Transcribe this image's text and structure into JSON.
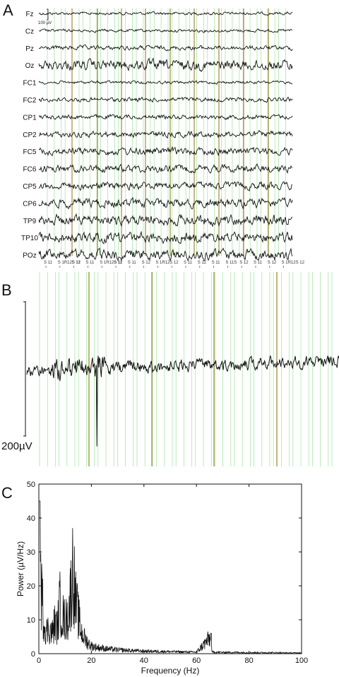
{
  "panels": {
    "a": {
      "letter": "A",
      "scale_label": "100 µV",
      "channels": [
        "Fz",
        "Cz",
        "Pz",
        "Oz",
        "FC1",
        "FC2",
        "CP1",
        "CP2",
        "FC5",
        "FC6",
        "CP5",
        "CP6",
        "TP9",
        "TP10",
        "POz"
      ],
      "event_labels": [
        "S 11",
        "S 1R12S 11",
        "S 12",
        "S 11",
        "S 1R12S 11",
        "S 12",
        "S 11",
        "S 12",
        "S 1R12",
        "S 12",
        "S 11",
        "S 12",
        "S 11",
        "S 11S",
        "S 12",
        "S 11",
        "S 12",
        "S 1R12S 12"
      ]
    },
    "b": {
      "letter": "B",
      "scale_label": "200µV"
    },
    "c": {
      "letter": "C"
    }
  },
  "chart_data": [
    {
      "type": "line",
      "title": "",
      "description_note": "",
      "channels": [
        "Fz",
        "Cz",
        "Pz",
        "Oz",
        "FC1",
        "FC2",
        "CP1",
        "CP2",
        "FC5",
        "FC6",
        "CP5",
        "CP6",
        "TP9",
        "TP10",
        "POz"
      ],
      "scale": "100 µV"
    },
    {
      "type": "line",
      "scale": "200µV"
    },
    {
      "type": "line",
      "xlabel": "Frequency (Hz)",
      "ylabel": "Power (µV/Hz)",
      "xlim": [
        0,
        100
      ],
      "ylim": [
        0,
        50
      ],
      "xticks": [
        0,
        20,
        40,
        60,
        80,
        100
      ],
      "yticks": [
        0,
        10,
        20,
        30,
        40,
        50
      ],
      "x": [
        0,
        1,
        2,
        3,
        4,
        5,
        6,
        7,
        8,
        9,
        10,
        11,
        12,
        13,
        14,
        15,
        16,
        17,
        18,
        19,
        20,
        22,
        25,
        30,
        35,
        40,
        45,
        50,
        55,
        60,
        65,
        66,
        70,
        75,
        80,
        85,
        90,
        95,
        100
      ],
      "y": [
        45,
        24,
        12,
        9,
        10,
        8,
        12,
        10,
        20,
        15,
        13,
        14,
        22,
        35,
        20,
        15,
        9,
        7,
        5,
        4,
        3,
        2.5,
        2,
        1.5,
        1.2,
        1,
        0.9,
        0.8,
        0.7,
        0.6,
        6,
        0.6,
        0.5,
        0.5,
        0.4,
        0.4,
        0.4,
        0.3,
        0.3
      ],
      "peaks_note": ""
    }
  ]
}
